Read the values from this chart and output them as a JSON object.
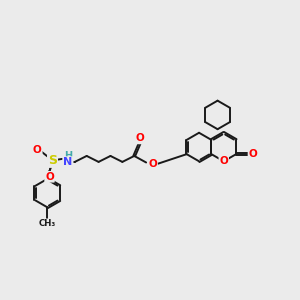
{
  "bg": "#ebebeb",
  "bond_lw": 1.4,
  "bond_color": "#1a1a1a",
  "atom_colors": {
    "O": "#ff0000",
    "S": "#cccc00",
    "N": "#4444ff",
    "H": "#44aaaa"
  },
  "figsize": [
    3.0,
    3.0
  ],
  "dpi": 100,
  "xlim": [
    0,
    10
  ],
  "ylim": [
    0,
    10
  ]
}
